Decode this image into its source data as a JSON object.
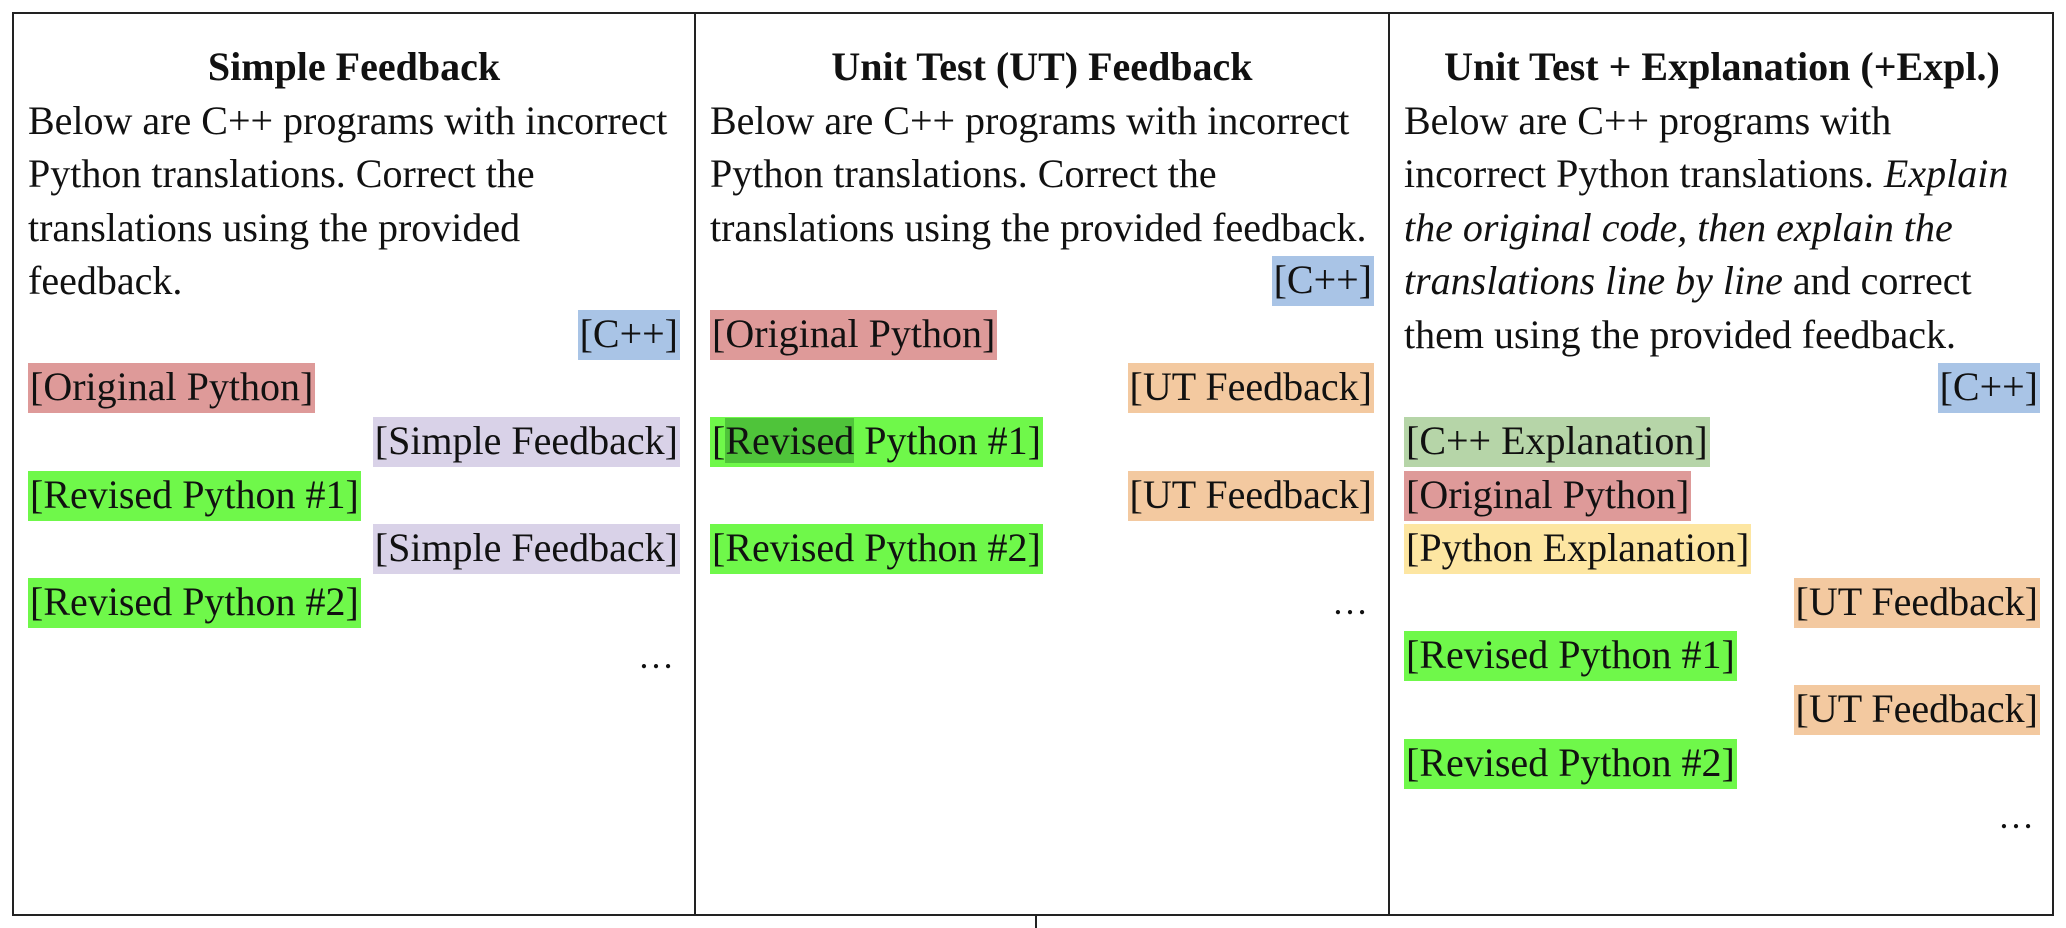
{
  "colors": {
    "cpp": "#a9c4e6",
    "original_python": "#de9a99",
    "simple_feedback": "#d9d2e8",
    "revised_python": "#6ff84a",
    "ut_feedback": "#f3c9a0",
    "cpp_explanation": "#b6d5a8",
    "python_explanation": "#fde6a2",
    "revised_word_highlight": "#4fc43a"
  },
  "columns": [
    {
      "title": "Simple Feedback",
      "intro": "Below are C++ programs with incorrect Python translations. Correct the translations using the provided feedback.",
      "blocks": [
        {
          "label": "[C++]",
          "align": "right",
          "color": "#a9c4e6"
        },
        {
          "label": "[Original Python]",
          "align": "left",
          "color": "#de9a99"
        },
        {
          "label": "[Simple Feedback]",
          "align": "right",
          "color": "#d9d2e8"
        },
        {
          "label": "[Revised Python #1]",
          "align": "left",
          "color": "#6ff84a"
        },
        {
          "label": "[Simple Feedback]",
          "align": "right",
          "color": "#d9d2e8"
        },
        {
          "label": "[Revised Python #2]",
          "align": "left",
          "color": "#6ff84a"
        }
      ],
      "ellipsis": "…"
    },
    {
      "title": "Unit Test (UT) Feedback",
      "intro": "Below are C++ programs with incorrect Python translations. Correct the translations using the provided feedback.",
      "blocks": [
        {
          "label": "[C++]",
          "align": "right",
          "color": "#a9c4e6"
        },
        {
          "label": "[Original Python]",
          "align": "left",
          "color": "#de9a99"
        },
        {
          "label": "[UT Feedback]",
          "align": "right",
          "color": "#f3c9a0"
        },
        {
          "label": "[Revised Python #1]",
          "align": "left",
          "color": "#6ff84a",
          "highlight_word": "Revised"
        },
        {
          "label": "[UT Feedback]",
          "align": "right",
          "color": "#f3c9a0"
        },
        {
          "label": "[Revised Python #2]",
          "align": "left",
          "color": "#6ff84a"
        }
      ],
      "ellipsis": "…"
    },
    {
      "title": "Unit Test + Explanation (+Expl.)",
      "intro_plain_1": "Below are C++ programs with incorrect Python translations.",
      "intro_italic": "Explain the original code, then explain the translations line by line",
      "intro_plain_2": "and correct them using the provided feedback.",
      "blocks": [
        {
          "label": "[C++]",
          "align": "right",
          "color": "#a9c4e6"
        },
        {
          "label": "[C++ Explanation]",
          "align": "left",
          "color": "#b6d5a8"
        },
        {
          "label": "[Original Python]",
          "align": "left",
          "color": "#de9a99"
        },
        {
          "label": "[Python Explanation]",
          "align": "left",
          "color": "#fde6a2"
        },
        {
          "label": "[UT Feedback]",
          "align": "right",
          "color": "#f3c9a0"
        },
        {
          "label": "[Revised Python #1]",
          "align": "left",
          "color": "#6ff84a"
        },
        {
          "label": "[UT Feedback]",
          "align": "right",
          "color": "#f3c9a0"
        },
        {
          "label": "[Revised Python #2]",
          "align": "left",
          "color": "#6ff84a"
        }
      ],
      "ellipsis": "…"
    }
  ]
}
